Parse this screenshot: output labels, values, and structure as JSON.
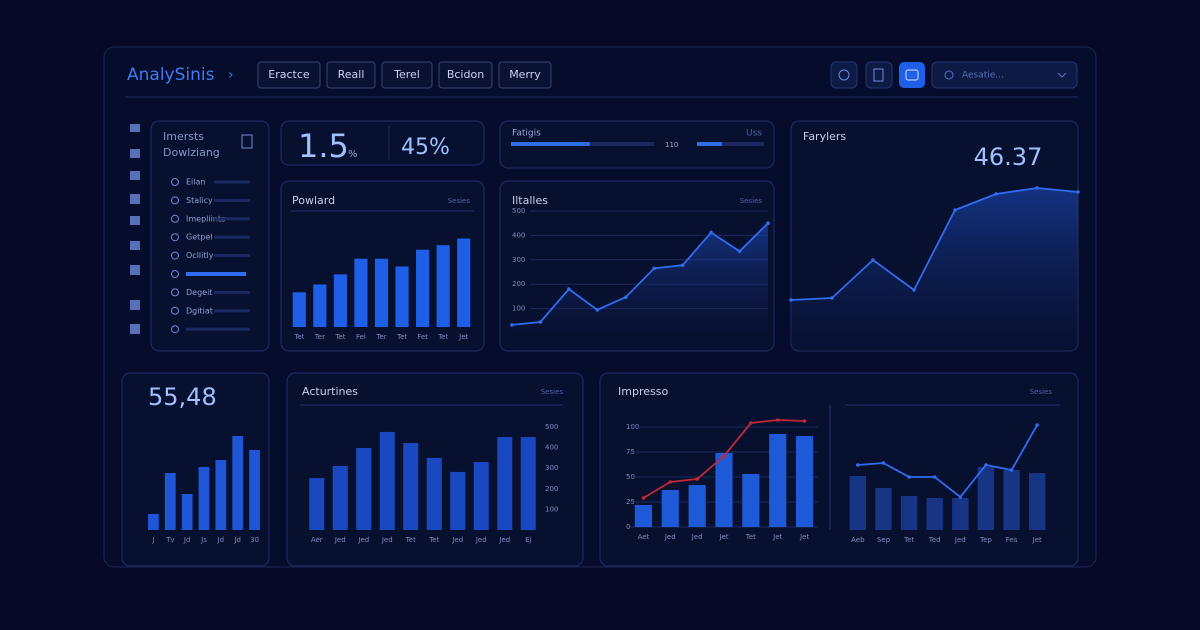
{
  "header": {
    "brand": "AnalySinis",
    "tabs": [
      "Eractce",
      "Reall",
      "Terel",
      "Bcidon",
      "Merry"
    ],
    "search": "Aesatie..."
  },
  "sidebar": {
    "title": [
      "Imersts",
      "Dowlziang"
    ],
    "items": [
      "Eilan",
      "Stalicy",
      "Imepliints",
      "Getpel",
      "Ocllitly",
      null,
      "Degeit",
      "Dgitiat",
      null
    ],
    "active": 5
  },
  "kpis": {
    "main": "1.5",
    "unit": "%",
    "second": "45%"
  },
  "progress": {
    "title": "Fatigis",
    "corner": "Uss",
    "label": "110",
    "values": [
      55,
      37
    ],
    "xlim": [
      0,
      100
    ]
  },
  "chart_data": [
    {
      "type": "bar",
      "title": "Powlard",
      "categories": [
        "Tet",
        "Ter",
        "Tet",
        "Fei",
        "Ter",
        "Tet",
        "Fet",
        "Tet",
        "Jet"
      ],
      "series": [
        {
          "name": "Sesies",
          "color": "#1f5fe8",
          "values": [
            31,
            38,
            47,
            61,
            61,
            54,
            69,
            73,
            79
          ]
        }
      ],
      "ylim": [
        0,
        100
      ]
    },
    {
      "type": "area",
      "title": "Iltalles",
      "categories": [
        null,
        null,
        null,
        null,
        null,
        null,
        null,
        null,
        null,
        null
      ],
      "series": [
        {
          "name": "Sesies",
          "color": "#2f6cf0",
          "values": [
            33,
            45,
            180,
            95,
            147,
            265,
            278,
            412,
            335,
            450
          ]
        }
      ],
      "ylim": [
        0,
        500
      ],
      "yticks": [
        100,
        200,
        300,
        400,
        500
      ],
      "grid": true
    },
    {
      "type": "area",
      "title": "Farylers",
      "kpi": "46.37",
      "categories": [
        null,
        null,
        null,
        null,
        null,
        null,
        null,
        null
      ],
      "series": [
        {
          "color": "#2f6cf0",
          "values": [
            25,
            26,
            45,
            30,
            70,
            78,
            81,
            79
          ]
        }
      ],
      "ylim": [
        0,
        100
      ]
    },
    {
      "type": "bar",
      "kpi": "55,48",
      "categories": [
        "J",
        "Tv",
        "Jd",
        "Js",
        "Jd",
        "Jd",
        "30"
      ],
      "series": [
        {
          "color": "#1f56d8",
          "values": [
            16,
            57,
            36,
            63,
            70,
            94,
            80
          ]
        }
      ],
      "ylim": [
        0,
        100
      ]
    },
    {
      "type": "bar",
      "title": "Acturtines",
      "categories": [
        "Aer",
        "Jed",
        "Jed",
        "Jed",
        "Tet",
        "Tet",
        "Jed",
        "Jed",
        "Jed",
        "Ej"
      ],
      "series": [
        {
          "name": "Sesies",
          "color": "#1a48c0",
          "values": [
            252,
            311,
            398,
            476,
            422,
            350,
            282,
            330,
            451,
            451
          ]
        }
      ],
      "ylim": [
        0,
        500
      ],
      "yticks": [
        100,
        200,
        300,
        400,
        500
      ]
    },
    {
      "type": "combo",
      "title": "Impresso",
      "categories": [
        "Aet",
        "Jed",
        "Jed",
        "Jet",
        "Tet",
        "Jet",
        "Jet"
      ],
      "series": [
        {
          "type": "bar",
          "color": "#1e5ad8",
          "values": [
            22,
            37,
            42,
            74,
            53,
            93,
            91
          ]
        },
        {
          "type": "line",
          "color": "#c0283a",
          "values": [
            29,
            45,
            48,
            71,
            104,
            107,
            106
          ]
        }
      ],
      "ylim": [
        0,
        110
      ],
      "yticks": [
        0,
        25,
        50,
        75,
        100
      ],
      "grid": true
    },
    {
      "type": "combo",
      "categories": [
        "Aeb",
        "Sep",
        "Tet",
        "Ted",
        "Jed",
        "Tep",
        "Fes",
        "Jet"
      ],
      "series": [
        {
          "type": "bar",
          "name": "Sesies",
          "color": "#173584",
          "values": [
            54,
            42,
            34,
            32,
            32,
            63,
            60,
            57
          ]
        },
        {
          "type": "line",
          "color": "#2f6cf0",
          "values": [
            65,
            67,
            53,
            53,
            33,
            65,
            60,
            105
          ]
        }
      ],
      "ylim": [
        0,
        110
      ]
    }
  ]
}
